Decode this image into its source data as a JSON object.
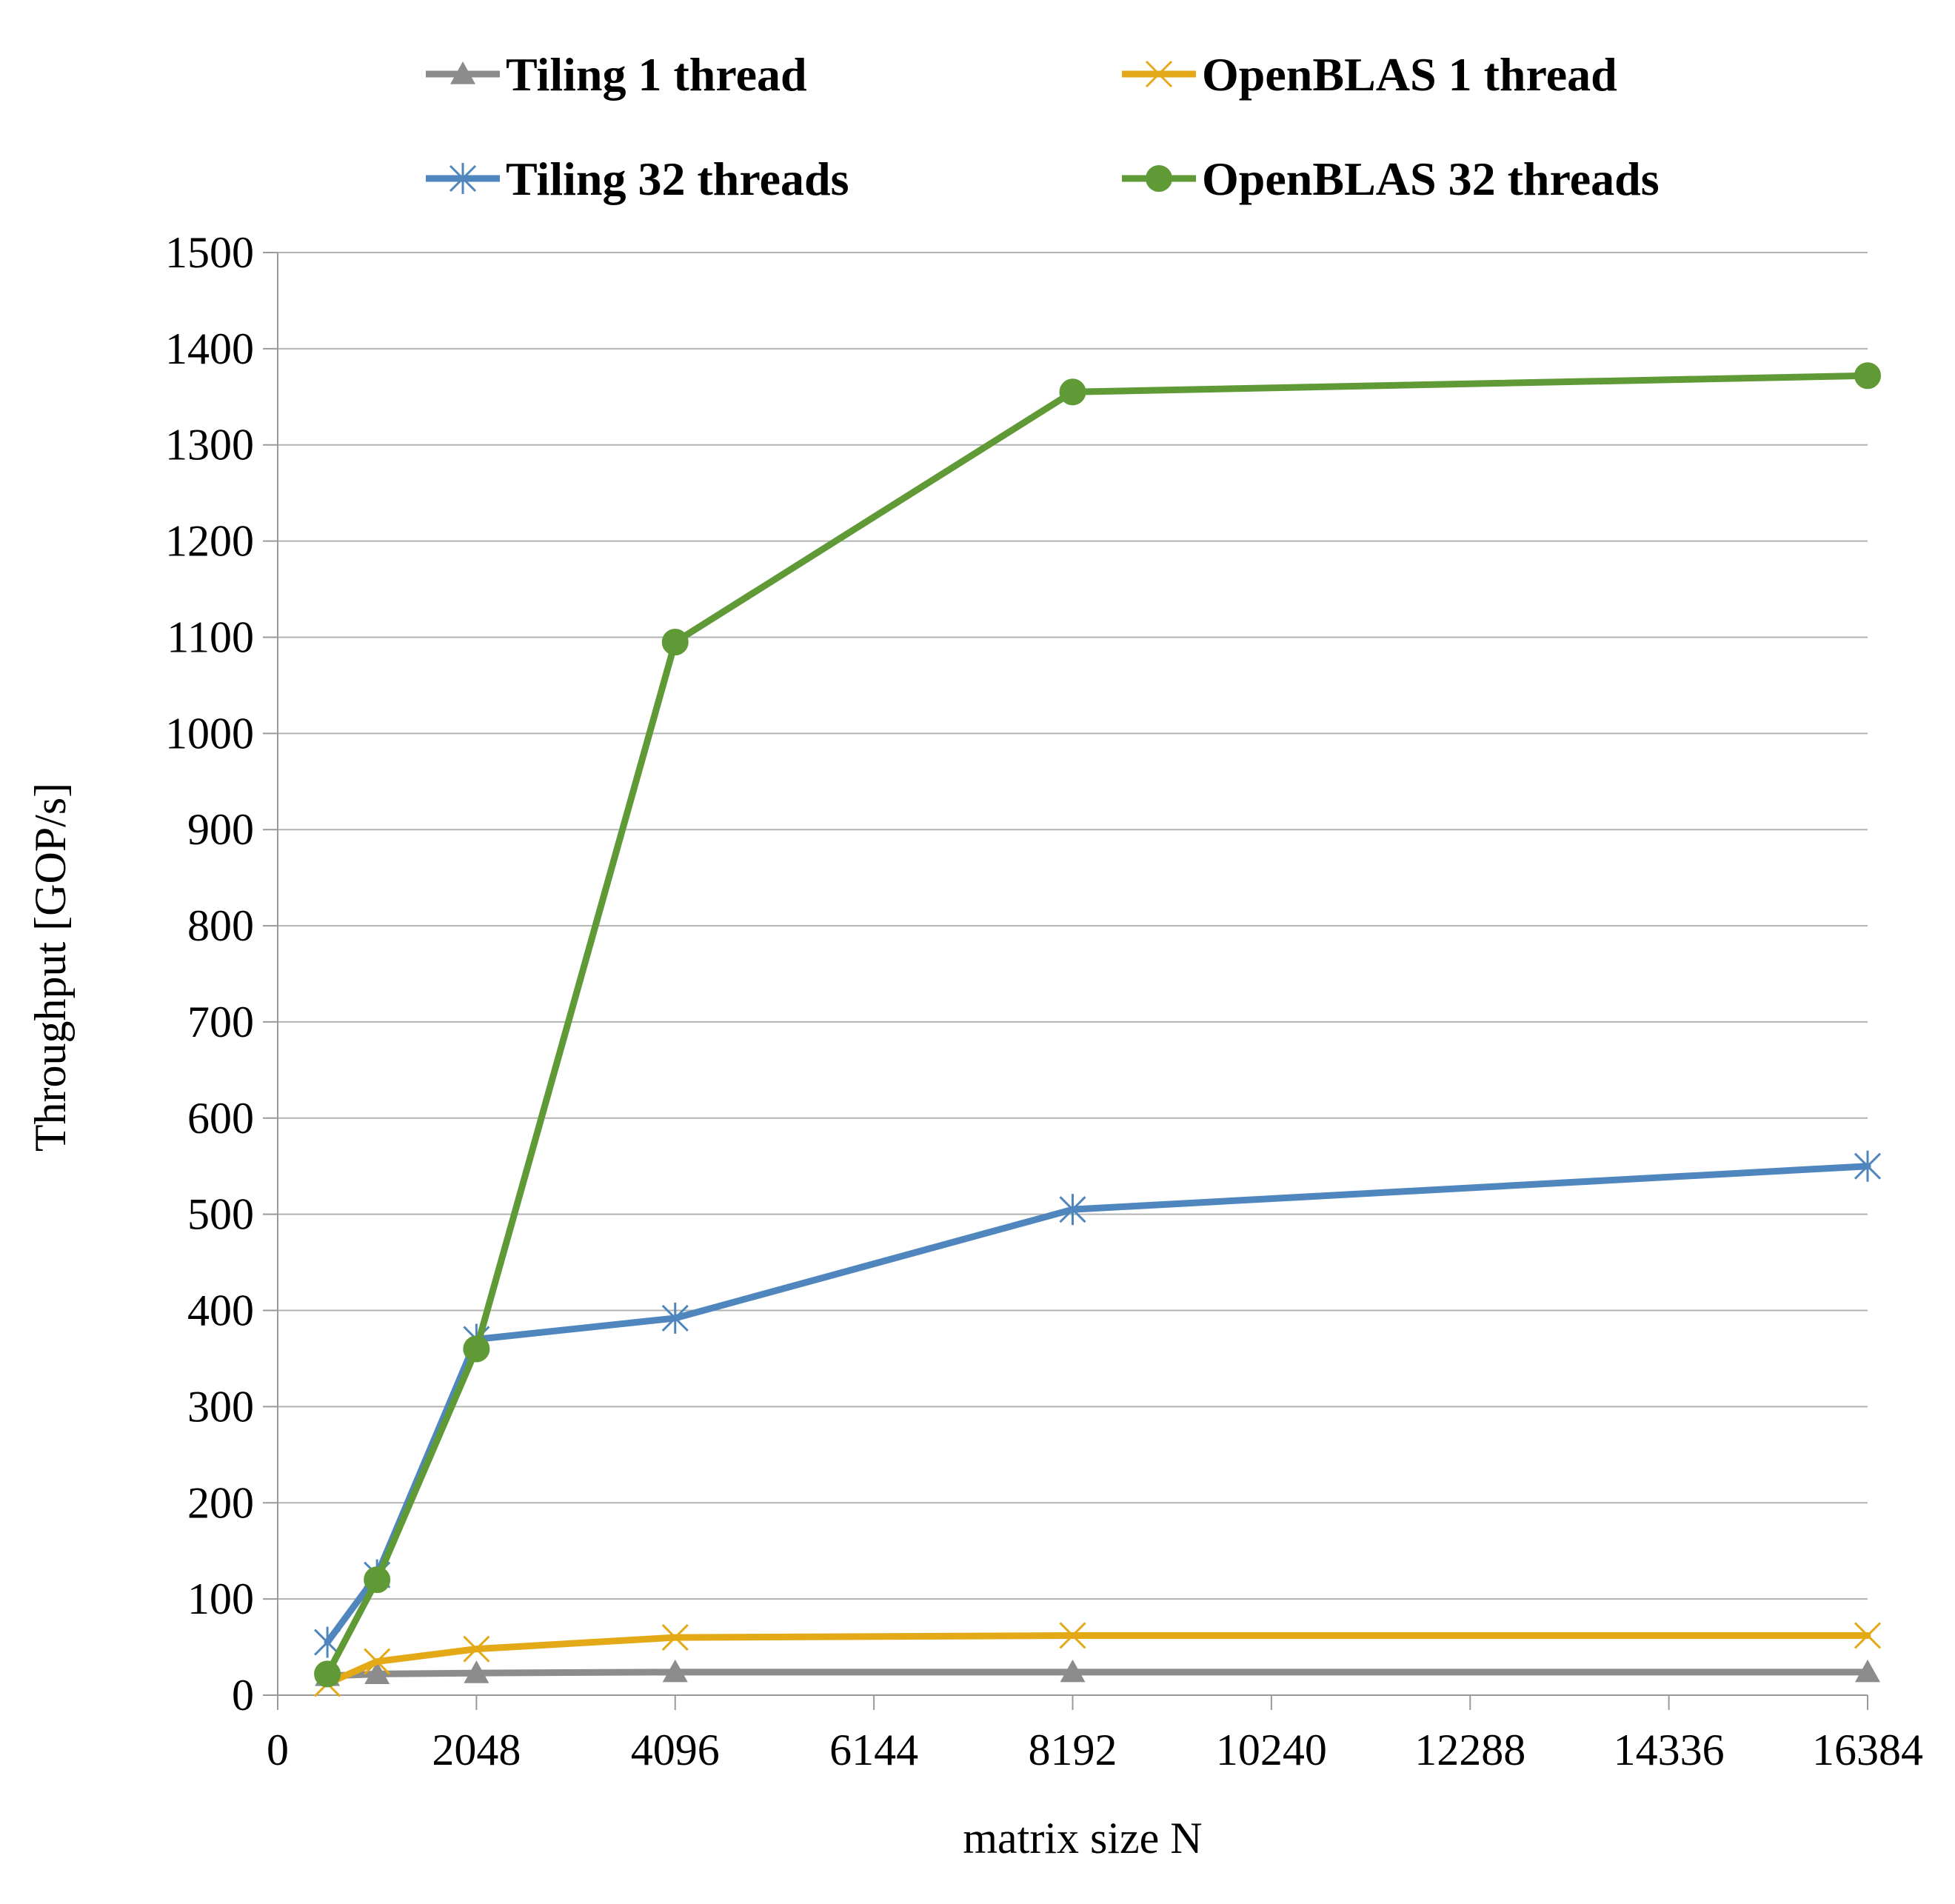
{
  "chart_data": {
    "type": "line",
    "xlabel": "matrix size N",
    "ylabel": "Throughput [GOP/s]",
    "xlim": [
      0,
      16384
    ],
    "ylim": [
      0,
      1500
    ],
    "xticks": [
      0,
      2048,
      4096,
      6144,
      8192,
      10240,
      12288,
      14336,
      16384
    ],
    "yticks": [
      0,
      100,
      200,
      300,
      400,
      500,
      600,
      700,
      800,
      900,
      1000,
      1100,
      1200,
      1300,
      1400,
      1500
    ],
    "grid": "horizontal",
    "legend_position": "top",
    "series": [
      {
        "name": "Tiling 1 thread",
        "color": "#8c8c8c",
        "marker": "triangle",
        "x": [
          512,
          1024,
          2048,
          4096,
          8192,
          16384
        ],
        "y": [
          20,
          22,
          23,
          24,
          24,
          24
        ]
      },
      {
        "name": "OpenBLAS 1 thread",
        "color": "#e3a917",
        "marker": "x",
        "x": [
          512,
          1024,
          2048,
          4096,
          8192,
          16384
        ],
        "y": [
          12,
          35,
          48,
          60,
          62,
          62
        ]
      },
      {
        "name": "Tiling 32 threads",
        "color": "#4f86bd",
        "marker": "asterisk",
        "x": [
          512,
          1024,
          2048,
          4096,
          8192,
          16384
        ],
        "y": [
          55,
          125,
          370,
          392,
          505,
          550
        ]
      },
      {
        "name": "OpenBLAS 32 threads",
        "color": "#5f9a36",
        "marker": "circle",
        "x": [
          512,
          1024,
          2048,
          4096,
          8192,
          16384
        ],
        "y": [
          22,
          120,
          360,
          1095,
          1355,
          1372
        ]
      }
    ]
  }
}
